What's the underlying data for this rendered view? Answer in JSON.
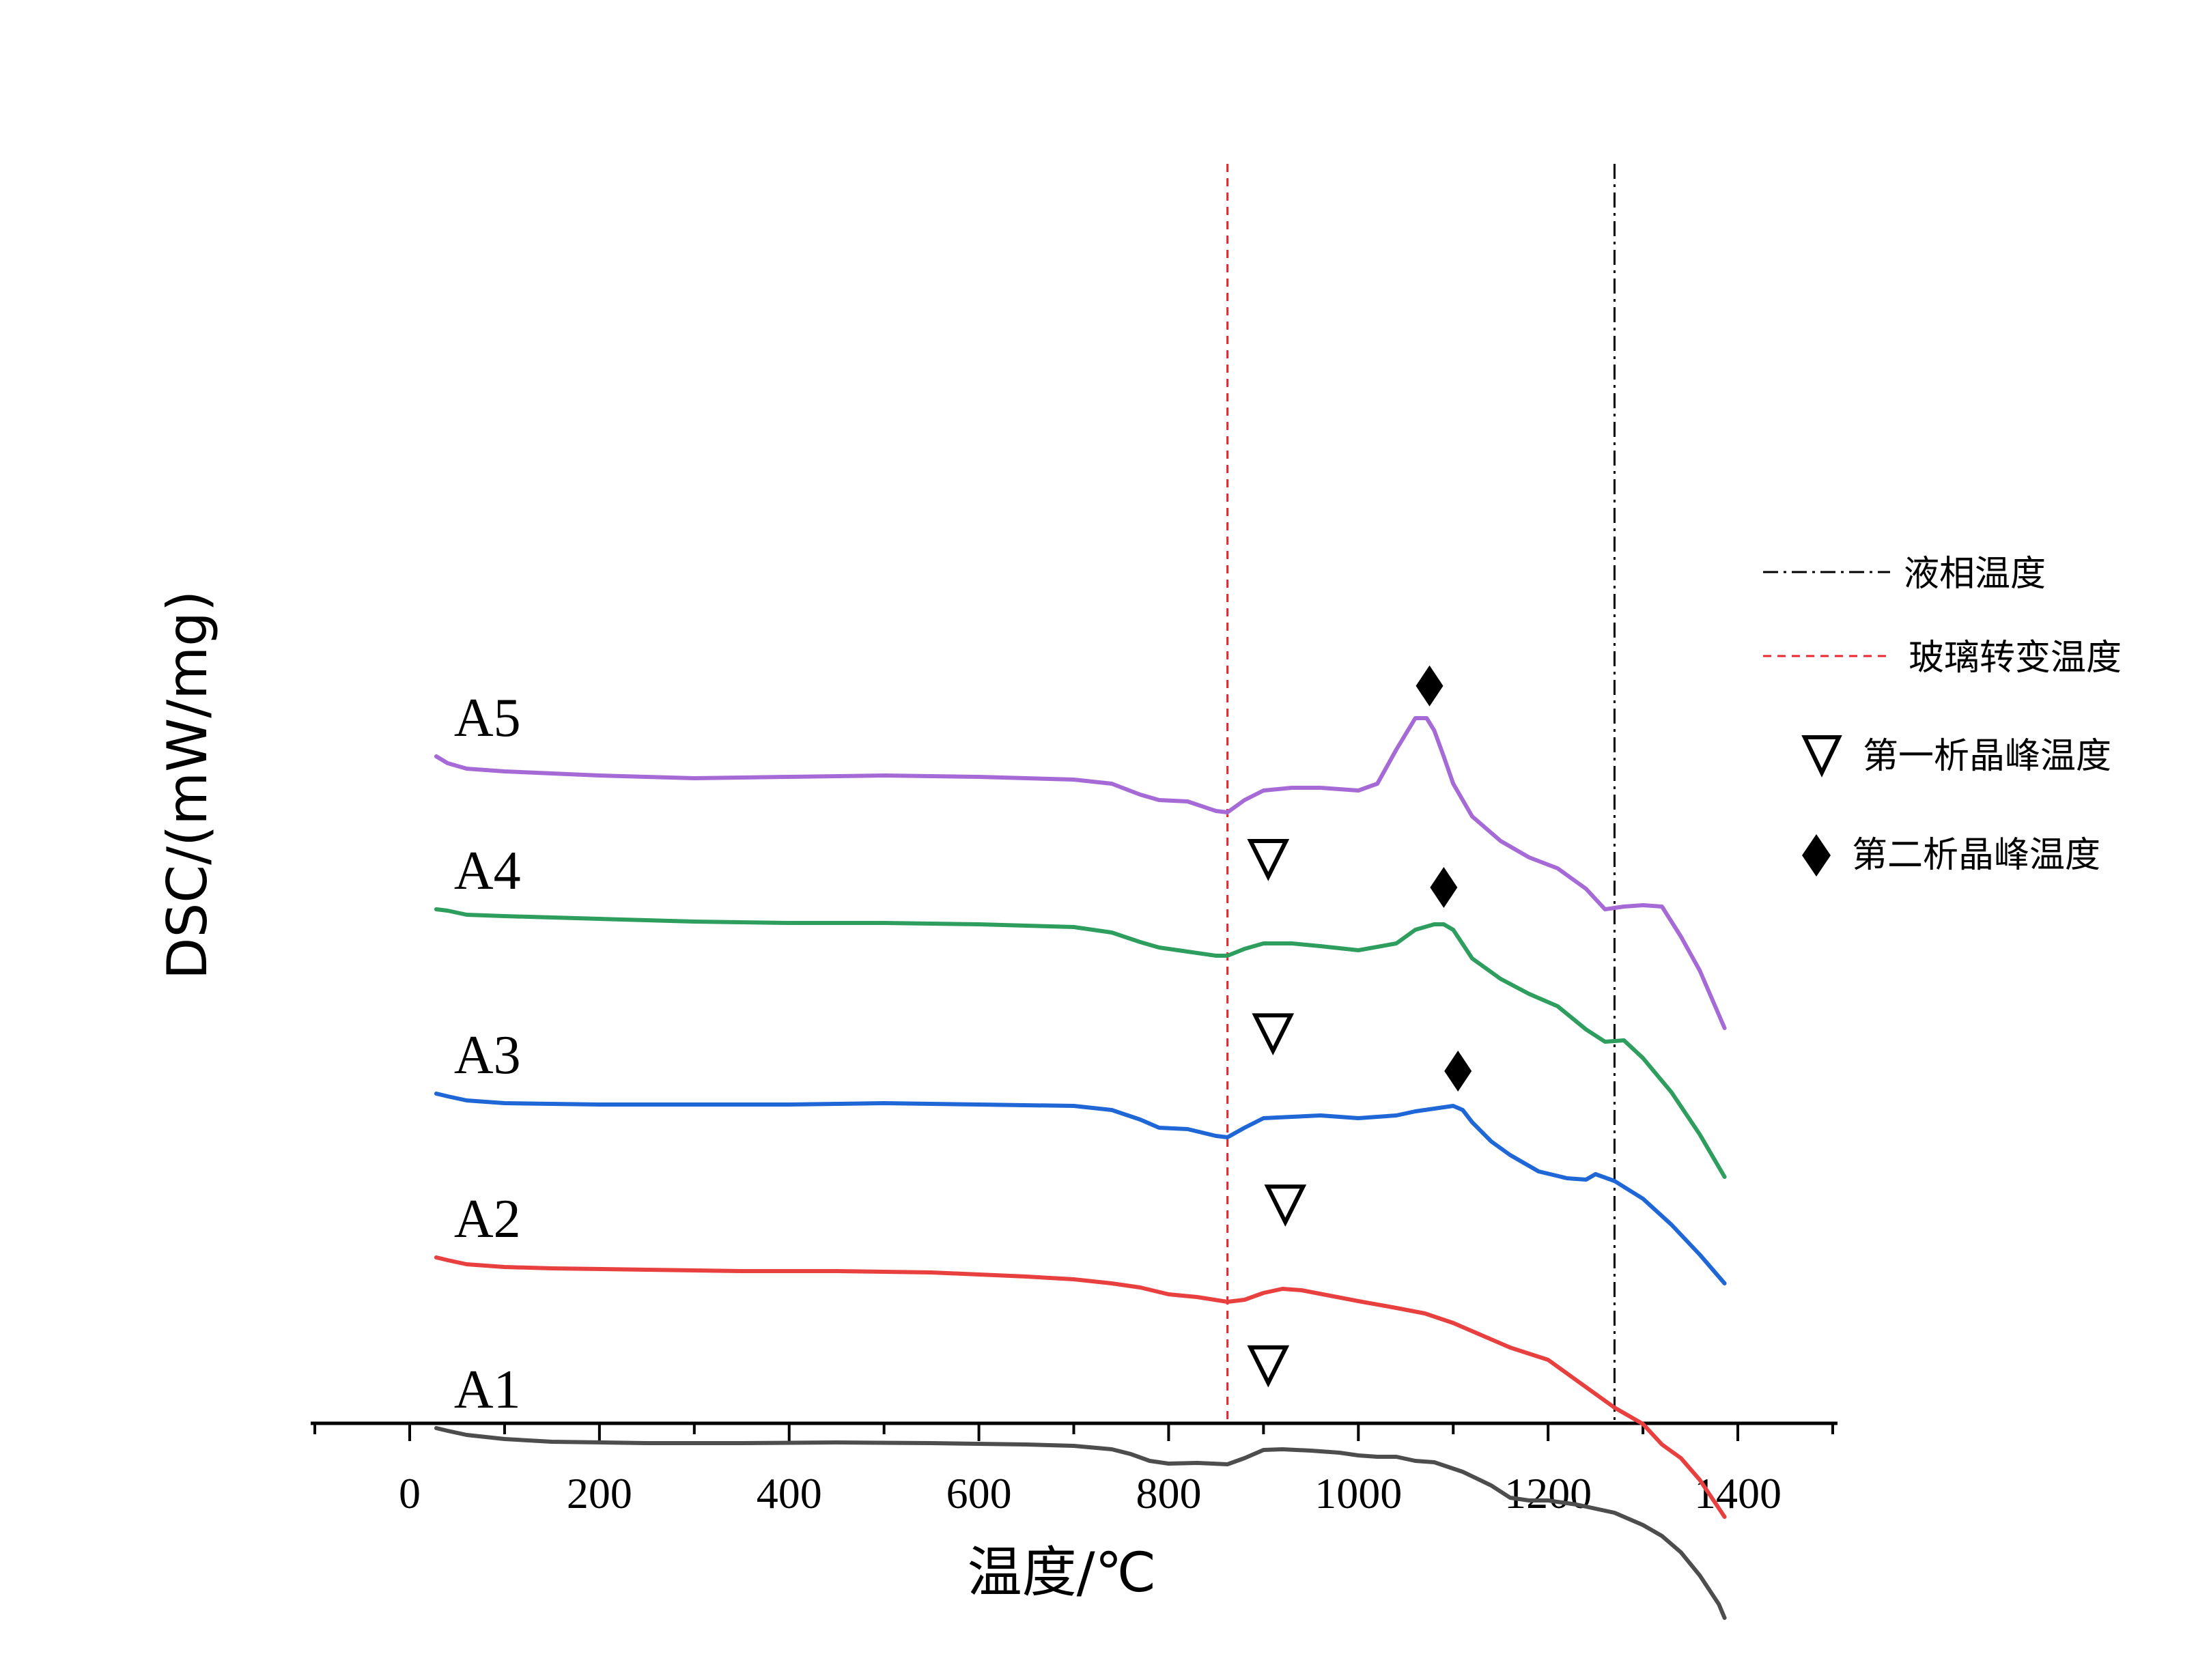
{
  "chart_data": {
    "type": "line",
    "title": "",
    "xlabel": "温度/℃",
    "ylabel": "DSC/(mW/mg)",
    "xlim": [
      -100,
      1500
    ],
    "xticks": [
      "0",
      "200",
      "400",
      "600",
      "800",
      "1000",
      "1200",
      "1400"
    ],
    "y_ticks_shown": false,
    "reference_lines": [
      {
        "name": "液相温度",
        "x": 1270,
        "color": "#000000",
        "style": "dash-dot"
      },
      {
        "name": "玻璃转变温度",
        "x": 862,
        "color": "#e8282e",
        "style": "dashed"
      }
    ],
    "legend": {
      "placement": "right",
      "items": [
        {
          "label": "液相温度",
          "symbol": "dash-dot-line"
        },
        {
          "label": "玻璃转变温度",
          "symbol": "dashed-line"
        },
        {
          "label": "第一析晶峰温度",
          "symbol": "open-triangle-down"
        },
        {
          "label": "第二析晶峰温度",
          "symbol": "filled-diamond"
        }
      ]
    },
    "series": [
      {
        "name": "A1",
        "color": "#4d4d4d",
        "x": [
          28,
          40,
          60,
          100,
          150,
          250,
          350,
          450,
          550,
          650,
          700,
          740,
          760,
          780,
          800,
          830,
          862,
          880,
          900,
          920,
          950,
          980,
          1000,
          1020,
          1040,
          1060,
          1080,
          1110,
          1140,
          1160,
          1180,
          1200,
          1230,
          1270,
          1300,
          1320,
          1340,
          1360,
          1380,
          1386
        ],
        "y": [
          -5.62,
          -5.66,
          -5.72,
          -5.78,
          -5.82,
          -5.84,
          -5.84,
          -5.83,
          -5.84,
          -5.86,
          -5.88,
          -5.93,
          -6.0,
          -6.1,
          -6.14,
          -6.13,
          -6.15,
          -6.06,
          -5.94,
          -5.93,
          -5.95,
          -5.98,
          -6.02,
          -6.04,
          -6.04,
          -6.1,
          -6.12,
          -6.26,
          -6.46,
          -6.64,
          -6.68,
          -6.68,
          -6.74,
          -6.86,
          -7.04,
          -7.2,
          -7.44,
          -7.78,
          -8.2,
          -8.4
        ]
      },
      {
        "name": "A2",
        "color": "#e8403f",
        "x": [
          28,
          40,
          60,
          100,
          150,
          250,
          350,
          450,
          550,
          650,
          700,
          740,
          770,
          800,
          830,
          862,
          880,
          900,
          920,
          940,
          970,
          1000,
          1040,
          1070,
          1100,
          1130,
          1160,
          1200,
          1230,
          1270,
          1300,
          1320,
          1340,
          1360,
          1386
        ],
        "y": [
          -3.12,
          -3.16,
          -3.22,
          -3.26,
          -3.28,
          -3.3,
          -3.32,
          -3.32,
          -3.34,
          -3.4,
          -3.44,
          -3.5,
          -3.56,
          -3.66,
          -3.7,
          -3.77,
          -3.74,
          -3.64,
          -3.58,
          -3.6,
          -3.68,
          -3.76,
          -3.86,
          -3.94,
          -4.08,
          -4.26,
          -4.44,
          -4.62,
          -4.92,
          -5.32,
          -5.56,
          -5.86,
          -6.06,
          -6.38,
          -6.92
        ]
      },
      {
        "name": "A3",
        "color": "#1f66d6",
        "x": [
          28,
          40,
          60,
          100,
          200,
          300,
          400,
          500,
          600,
          700,
          740,
          770,
          790,
          820,
          850,
          862,
          880,
          900,
          930,
          960,
          1000,
          1040,
          1060,
          1080,
          1100,
          1110,
          1120,
          1140,
          1160,
          1190,
          1220,
          1240,
          1250,
          1270,
          1300,
          1330,
          1360,
          1386
        ],
        "y": [
          -0.72,
          -0.76,
          -0.82,
          -0.86,
          -0.88,
          -0.88,
          -0.88,
          -0.86,
          -0.88,
          -0.9,
          -0.96,
          -1.1,
          -1.22,
          -1.24,
          -1.34,
          -1.36,
          -1.22,
          -1.08,
          -1.06,
          -1.04,
          -1.08,
          -1.04,
          -0.98,
          -0.94,
          -0.9,
          -0.96,
          -1.14,
          -1.42,
          -1.62,
          -1.86,
          -1.96,
          -1.98,
          -1.9,
          -2.0,
          -2.26,
          -2.64,
          -3.08,
          -3.5
        ]
      },
      {
        "name": "A4",
        "color": "#2e9e5e",
        "x": [
          28,
          40,
          60,
          100,
          200,
          300,
          400,
          500,
          600,
          700,
          740,
          770,
          790,
          820,
          850,
          862,
          880,
          900,
          930,
          960,
          1000,
          1040,
          1060,
          1080,
          1090,
          1100,
          1120,
          1150,
          1180,
          1210,
          1240,
          1260,
          1280,
          1300,
          1330,
          1360,
          1386
        ],
        "y": [
          1.98,
          1.96,
          1.9,
          1.88,
          1.84,
          1.8,
          1.78,
          1.78,
          1.76,
          1.72,
          1.64,
          1.5,
          1.42,
          1.36,
          1.3,
          1.3,
          1.4,
          1.48,
          1.48,
          1.44,
          1.38,
          1.48,
          1.68,
          1.76,
          1.76,
          1.68,
          1.26,
          0.96,
          0.74,
          0.56,
          0.22,
          0.04,
          0.06,
          -0.2,
          -0.7,
          -1.32,
          -1.94
        ]
      },
      {
        "name": "A5",
        "color": "#a66ad6",
        "x": [
          28,
          40,
          60,
          100,
          200,
          300,
          400,
          500,
          600,
          700,
          740,
          770,
          790,
          820,
          850,
          862,
          880,
          900,
          930,
          960,
          1000,
          1020,
          1040,
          1060,
          1072,
          1080,
          1090,
          1100,
          1120,
          1150,
          1180,
          1210,
          1240,
          1260,
          1280,
          1300,
          1320,
          1340,
          1360,
          1386
        ],
        "y": [
          4.22,
          4.12,
          4.04,
          4.0,
          3.94,
          3.9,
          3.92,
          3.94,
          3.92,
          3.88,
          3.82,
          3.66,
          3.58,
          3.56,
          3.42,
          3.4,
          3.58,
          3.72,
          3.76,
          3.76,
          3.72,
          3.82,
          4.32,
          4.78,
          4.78,
          4.6,
          4.22,
          3.82,
          3.34,
          2.98,
          2.74,
          2.58,
          2.28,
          1.98,
          2.02,
          2.04,
          2.02,
          1.58,
          1.08,
          0.24
        ]
      }
    ],
    "markers": {
      "first_crystallization_peak": [
        {
          "series": "A1",
          "x": 905
        },
        {
          "series": "A2",
          "x": 923
        },
        {
          "series": "A3",
          "x": 910
        },
        {
          "series": "A4",
          "x": 905
        }
      ],
      "second_crystallization_peak": [
        {
          "series": "A3",
          "x": 1105
        },
        {
          "series": "A4",
          "x": 1090
        },
        {
          "series": "A5",
          "x": 1075
        }
      ]
    }
  }
}
